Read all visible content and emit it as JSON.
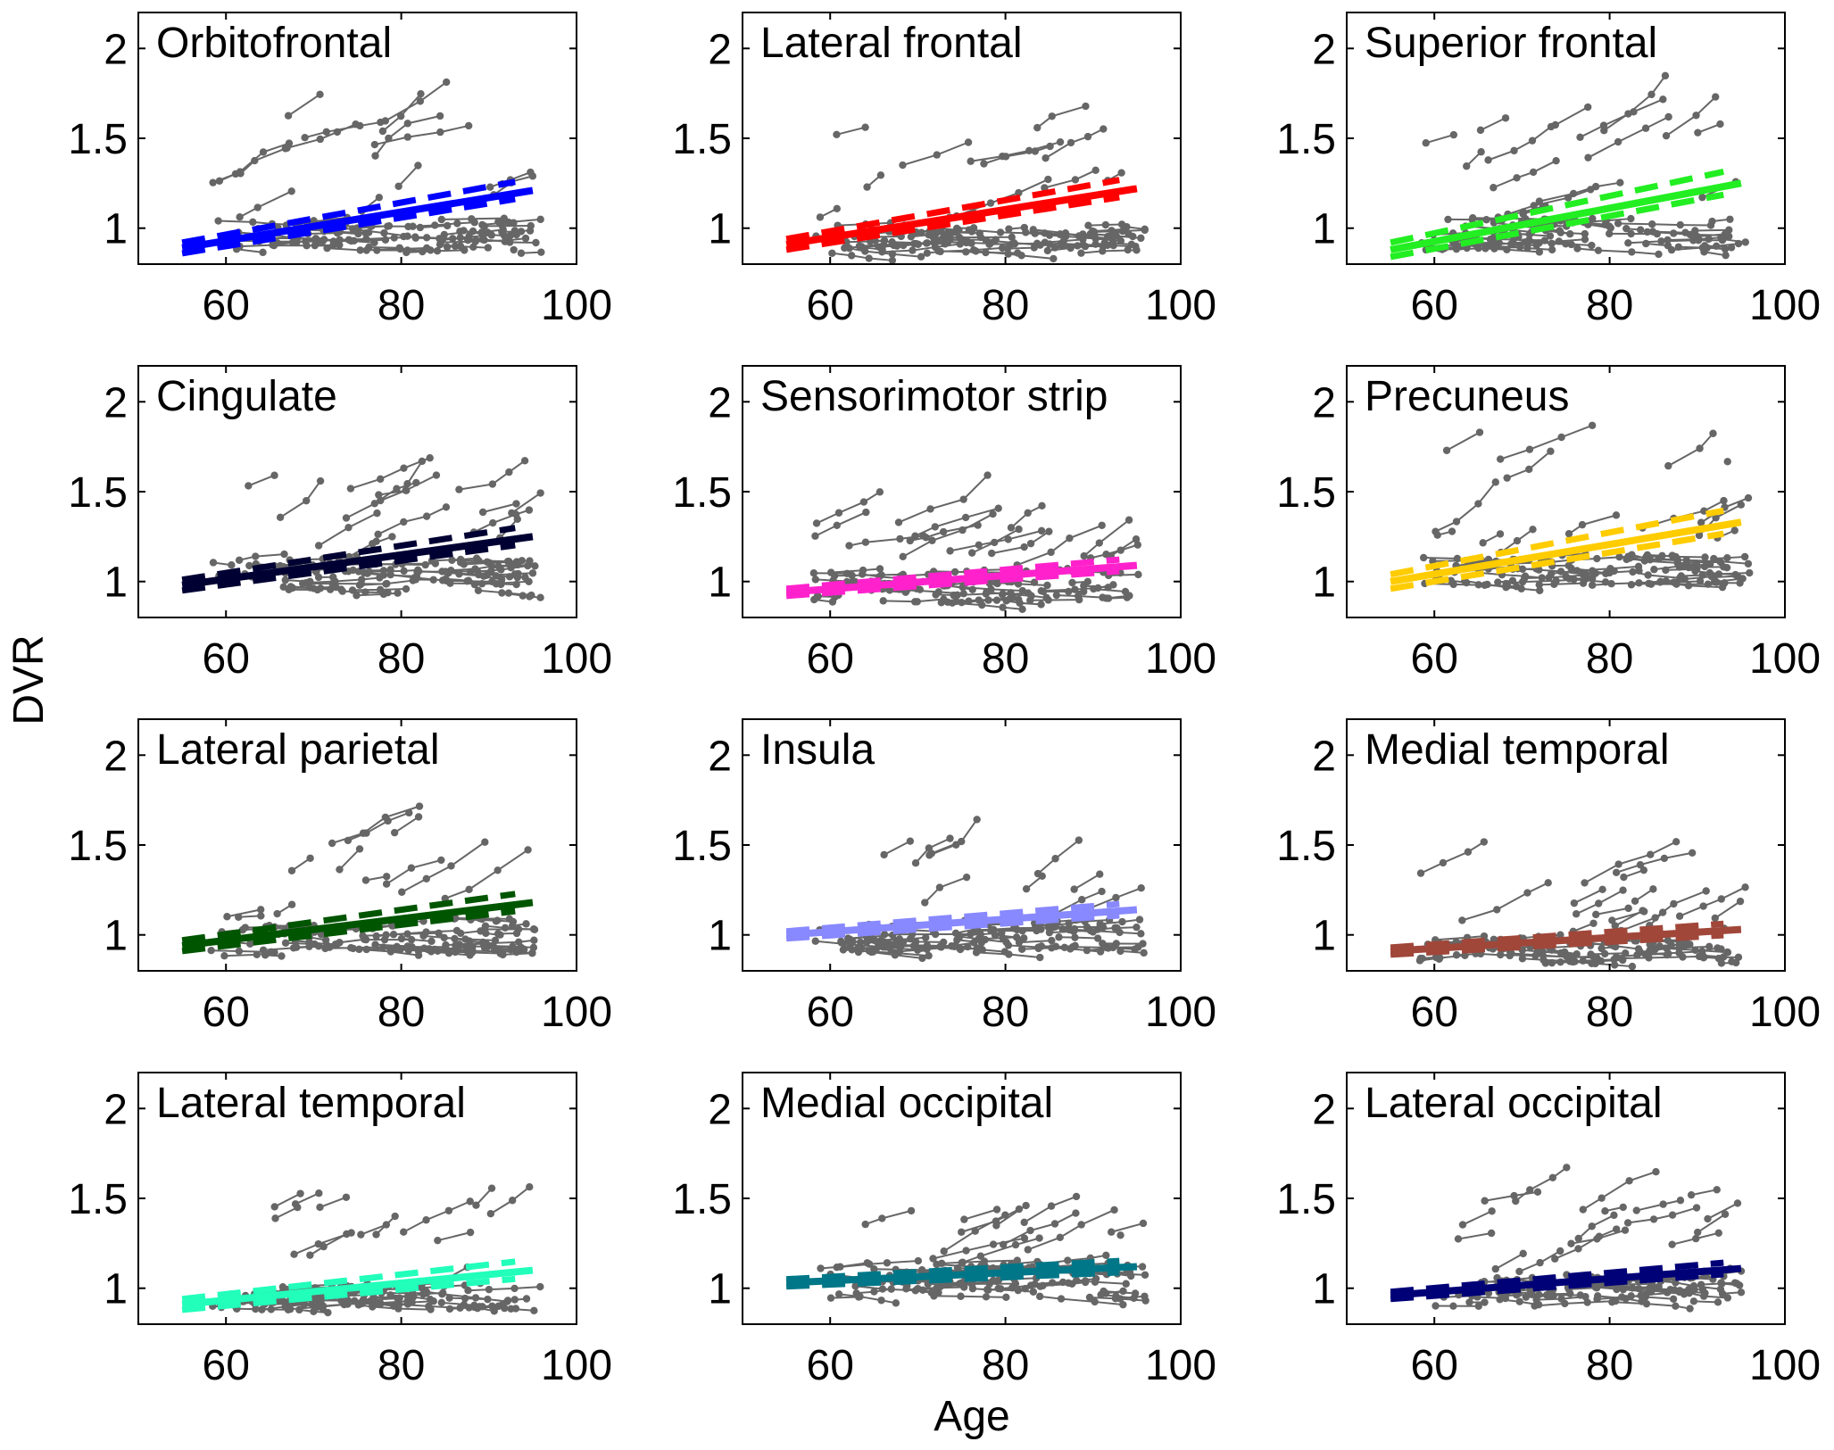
{
  "figure": {
    "x_axis_title": "Age",
    "y_axis_title": "DVR"
  },
  "colors": {
    "observations": "#666666",
    "frame": "#000000"
  },
  "chart_data": {
    "type": "scatter",
    "description_of_marks": "Longitudinal DVR measurements (grey connected points) with a fitted linear trend (solid, colored) and its confidence band (dashed, colored) per region.",
    "xlim": [
      50,
      100
    ],
    "ylim": [
      0.8,
      2.2
    ],
    "xticks": [
      60,
      80,
      100
    ],
    "yticks": [
      1,
      1.5,
      2
    ],
    "xtick_labels": [
      "60",
      "80",
      "100"
    ],
    "ytick_labels": [
      "1",
      "1.5",
      "2"
    ],
    "fit_x_range": [
      55,
      95
    ],
    "panels": [
      {
        "title": "Orbitofrontal",
        "color": "#0000ff",
        "fit": [
          0.89,
          1.21
        ],
        "ci": 0.03,
        "seed": 11,
        "cloud": [
          0.85,
          1.05
        ],
        "high": [
          1.75,
          1.45
        ]
      },
      {
        "title": "Lateral frontal",
        "color": "#ff0000",
        "fit": [
          0.91,
          1.22
        ],
        "ci": 0.03,
        "seed": 23,
        "cloud": [
          0.86,
          1.02
        ],
        "high": [
          1.7,
          1.5
        ]
      },
      {
        "title": "Superior frontal",
        "color": "#22ee22",
        "fit": [
          0.88,
          1.25
        ],
        "ci": 0.04,
        "seed": 37,
        "cloud": [
          0.86,
          1.06
        ],
        "high": [
          1.75,
          1.55
        ]
      },
      {
        "title": "Cingulate",
        "color": "#000033",
        "fit": [
          0.98,
          1.25
        ],
        "ci": 0.03,
        "seed": 41,
        "cloud": [
          0.92,
          1.12
        ],
        "high": [
          1.7,
          1.5
        ]
      },
      {
        "title": "Sensorimotor strip",
        "color": "#ff22cc",
        "fit": [
          0.94,
          1.09
        ],
        "ci": 0.02,
        "seed": 53,
        "cloud": [
          0.88,
          1.06
        ],
        "high": [
          1.38,
          1.25
        ]
      },
      {
        "title": "Precuneus",
        "color": "#ffcc00",
        "fit": [
          1.0,
          1.33
        ],
        "ci": 0.04,
        "seed": 67,
        "cloud": [
          0.98,
          1.15
        ],
        "high": [
          1.95,
          1.6
        ]
      },
      {
        "title": "Lateral parietal",
        "color": "#005500",
        "fit": [
          0.94,
          1.18
        ],
        "ci": 0.03,
        "seed": 71,
        "cloud": [
          0.88,
          1.1
        ],
        "high": [
          1.68,
          1.45
        ]
      },
      {
        "title": "Insula",
        "color": "#8888ff",
        "fit": [
          1.0,
          1.14
        ],
        "ci": 0.02,
        "seed": 83,
        "cloud": [
          0.9,
          1.08
        ],
        "high": [
          1.52,
          1.35
        ]
      },
      {
        "title": "Medial temporal",
        "color": "#a0473a",
        "fit": [
          0.91,
          1.03
        ],
        "ci": 0.02,
        "seed": 97,
        "cloud": [
          0.84,
          0.98
        ],
        "high": [
          1.42,
          1.2
        ]
      },
      {
        "title": "Lateral temporal",
        "color": "#22ffbb",
        "fit": [
          0.91,
          1.1
        ],
        "ci": 0.03,
        "seed": 101,
        "cloud": [
          0.88,
          1.02
        ],
        "high": [
          1.55,
          1.4
        ]
      },
      {
        "title": "Medial occipital",
        "color": "#007788",
        "fit": [
          1.03,
          1.12
        ],
        "ci": 0.02,
        "seed": 113,
        "cloud": [
          0.94,
          1.14
        ],
        "high": [
          1.48,
          1.28
        ]
      },
      {
        "title": "Lateral occipital",
        "color": "#000077",
        "fit": [
          0.96,
          1.11
        ],
        "ci": 0.02,
        "seed": 127,
        "cloud": [
          0.9,
          1.08
        ],
        "high": [
          1.6,
          1.5
        ]
      }
    ]
  }
}
